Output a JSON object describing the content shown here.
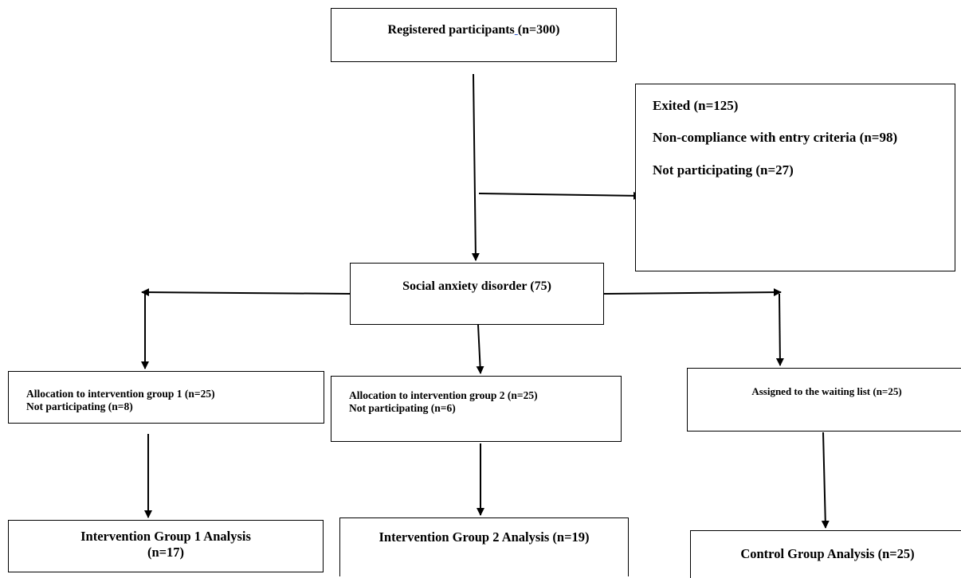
{
  "nodes": {
    "registered": {
      "label": "Registered participants",
      "count": "(n=300)"
    },
    "exited": {
      "title": "Exited (n=125)",
      "noncompliance": "Non-compliance with entry criteria (n=98)",
      "not_participating": "Not participating (n=27)"
    },
    "social_anxiety": {
      "label": "Social anxiety disorder (75)"
    },
    "group1_allocation": {
      "line1": "Allocation to intervention group 1 (n=25)",
      "line2": "Not participating (n=8)"
    },
    "group2_allocation": {
      "line1": "Allocation to intervention group 2 (n=25)",
      "line2": "Not participating (n=6)"
    },
    "waiting_list": {
      "label": "Assigned to the waiting list (n=25)"
    },
    "group1_analysis": {
      "line1": "Intervention Group 1 Analysis",
      "line2": "(n=17)"
    },
    "group2_analysis": {
      "label": "Intervention Group 2 Analysis (n=19)"
    },
    "control_analysis": {
      "label": "Control Group Analysis (n=25)"
    }
  }
}
